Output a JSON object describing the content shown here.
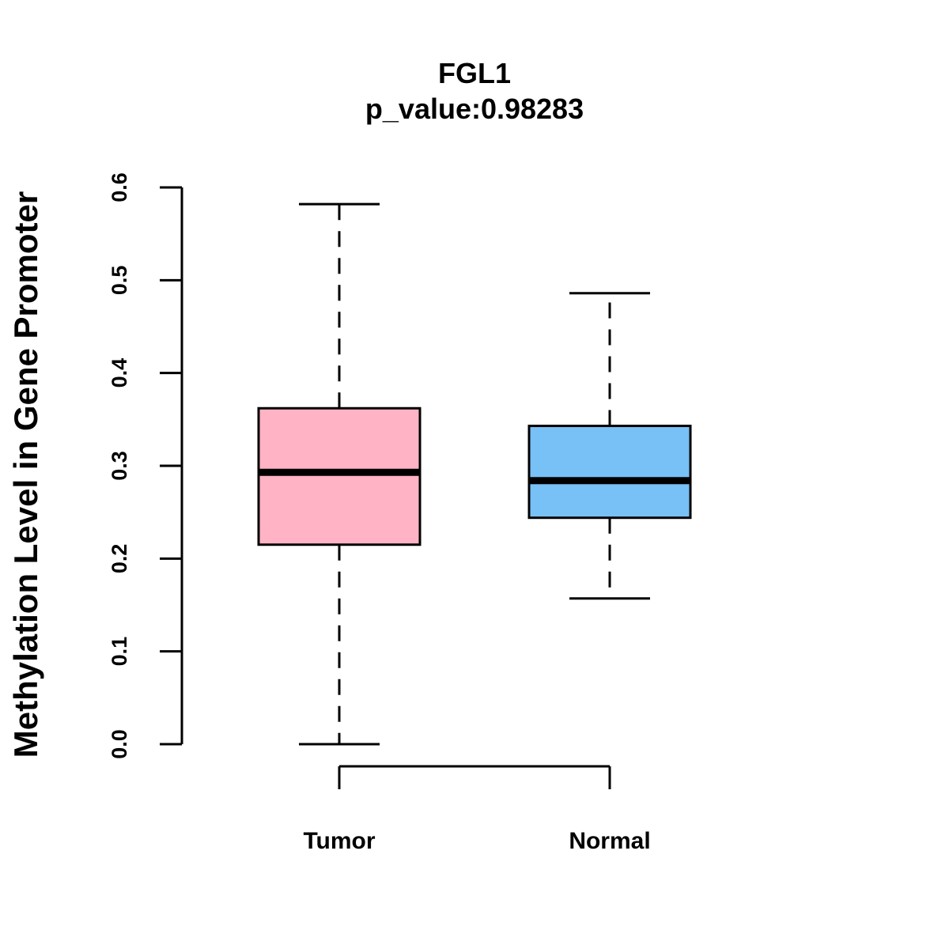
{
  "chart_data": {
    "type": "boxplot",
    "title": "FGL1",
    "subtitle": "p_value:0.98283",
    "xlabel": "",
    "ylabel": "Methylation Level in Gene Promoter",
    "ylim": [
      0,
      0.6
    ],
    "yticks": [
      "0.0",
      "0.1",
      "0.2",
      "0.3",
      "0.4",
      "0.5",
      "0.6"
    ],
    "grid": false,
    "categories": [
      "Tumor",
      "Normal"
    ],
    "boxes": [
      {
        "name": "Tumor",
        "min": 0.0,
        "q1": 0.215,
        "median": 0.293,
        "q3": 0.362,
        "max": 0.582,
        "color": "#FFB3C4"
      },
      {
        "name": "Normal",
        "min": 0.157,
        "q1": 0.244,
        "median": 0.284,
        "q3": 0.343,
        "max": 0.486,
        "color": "#78C1F7"
      }
    ]
  }
}
